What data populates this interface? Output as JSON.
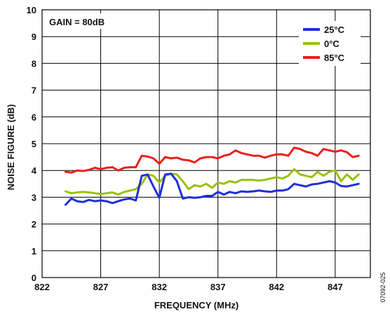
{
  "chart_data": {
    "type": "line",
    "annotation": "GAIN = 80dB",
    "xlabel": "FREQUENCY (MHz)",
    "ylabel": "NOISE FIGURE (dB)",
    "xlim": [
      822,
      850
    ],
    "ylim": [
      0,
      10
    ],
    "xticks": [
      "822",
      "827",
      "832",
      "837",
      "842",
      "847"
    ],
    "yticks": [
      "0",
      "1",
      "2",
      "3",
      "4",
      "5",
      "6",
      "7",
      "8",
      "9",
      "10"
    ],
    "grid": true,
    "legend_position": "top-right",
    "figure_id": "07092-025",
    "series": [
      {
        "name": "85°C",
        "color": "#e8211e",
        "x": [
          824,
          824.5,
          825,
          825.5,
          826,
          826.5,
          827,
          827.5,
          828,
          828.5,
          829,
          829.5,
          830,
          830.5,
          831,
          831.5,
          832,
          832.5,
          833,
          833.5,
          834,
          834.5,
          835,
          835.5,
          836,
          836.5,
          837,
          837.5,
          838,
          838.5,
          839,
          839.5,
          840,
          840.5,
          841,
          841.5,
          842,
          842.5,
          843,
          843.5,
          844,
          844.5,
          845,
          845.5,
          846,
          846.5,
          847,
          847.5,
          848,
          848.5,
          849
        ],
        "y": [
          3.95,
          3.92,
          4.0,
          3.98,
          4.02,
          4.1,
          4.05,
          4.1,
          4.12,
          4.0,
          4.1,
          4.12,
          4.12,
          4.55,
          4.52,
          4.45,
          4.25,
          4.5,
          4.45,
          4.48,
          4.4,
          4.38,
          4.3,
          4.45,
          4.5,
          4.5,
          4.45,
          4.55,
          4.6,
          4.75,
          4.65,
          4.6,
          4.55,
          4.55,
          4.48,
          4.55,
          4.6,
          4.6,
          4.55,
          4.85,
          4.8,
          4.7,
          4.65,
          4.55,
          4.8,
          4.75,
          4.7,
          4.75,
          4.68,
          4.5,
          4.55
        ]
      },
      {
        "name": "0°C",
        "color": "#9ac10f",
        "x": [
          824,
          824.5,
          825,
          825.5,
          826,
          826.5,
          827,
          827.5,
          828,
          828.5,
          829,
          829.5,
          830,
          830.5,
          831,
          831.5,
          832,
          832.5,
          833,
          833.5,
          834,
          834.5,
          835,
          835.5,
          836,
          836.5,
          837,
          837.5,
          838,
          838.5,
          839,
          839.5,
          840,
          840.5,
          841,
          841.5,
          842,
          842.5,
          843,
          843.5,
          844,
          844.5,
          845,
          845.5,
          846,
          846.5,
          847,
          847.5,
          848,
          848.5,
          849
        ],
        "y": [
          3.22,
          3.15,
          3.18,
          3.2,
          3.18,
          3.15,
          3.12,
          3.15,
          3.18,
          3.1,
          3.2,
          3.25,
          3.3,
          3.5,
          3.85,
          3.8,
          3.55,
          3.8,
          3.88,
          3.85,
          3.6,
          3.3,
          3.45,
          3.4,
          3.5,
          3.35,
          3.55,
          3.5,
          3.6,
          3.55,
          3.65,
          3.65,
          3.65,
          3.62,
          3.65,
          3.7,
          3.75,
          3.7,
          3.8,
          4.05,
          3.85,
          3.8,
          3.75,
          3.95,
          3.8,
          3.95,
          4.0,
          3.6,
          3.85,
          3.65,
          3.85
        ]
      },
      {
        "name": "25°C",
        "color": "#1f2fd8",
        "x": [
          824,
          824.5,
          825,
          825.5,
          826,
          826.5,
          827,
          827.5,
          828,
          828.5,
          829,
          829.5,
          830,
          830.5,
          831,
          831.5,
          832,
          832.5,
          833,
          833.5,
          834,
          834.5,
          835,
          835.5,
          836,
          836.5,
          837,
          837.5,
          838,
          838.5,
          839,
          839.5,
          840,
          840.5,
          841,
          841.5,
          842,
          842.5,
          843,
          843.5,
          844,
          844.5,
          845,
          845.5,
          846,
          846.5,
          847,
          847.5,
          848,
          848.5,
          849
        ],
        "y": [
          2.72,
          2.95,
          2.85,
          2.82,
          2.9,
          2.85,
          2.88,
          2.85,
          2.78,
          2.85,
          2.92,
          2.95,
          2.88,
          3.8,
          3.85,
          3.4,
          2.98,
          3.85,
          3.88,
          3.6,
          2.95,
          3.0,
          2.98,
          3.0,
          3.05,
          3.05,
          3.2,
          3.1,
          3.2,
          3.15,
          3.22,
          3.2,
          3.22,
          3.25,
          3.22,
          3.2,
          3.25,
          3.25,
          3.3,
          3.5,
          3.45,
          3.4,
          3.48,
          3.5,
          3.55,
          3.6,
          3.55,
          3.42,
          3.4,
          3.45,
          3.5
        ]
      }
    ],
    "legend_order": [
      "25°C",
      "0°C",
      "85°C"
    ]
  }
}
